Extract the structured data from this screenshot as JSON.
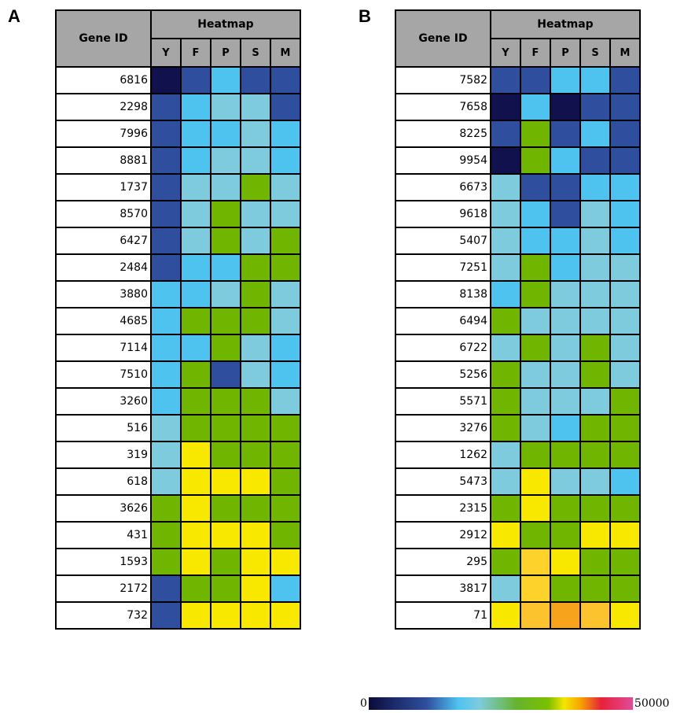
{
  "panels": [
    {
      "label": "A",
      "header": {
        "gene_id": "Gene ID",
        "heatmap": "Heatmap",
        "columns": [
          "Y",
          "F",
          "P",
          "S",
          "M"
        ]
      },
      "rows": [
        {
          "gene": "6816",
          "cells": [
            "#10114d",
            "#2f4f9e",
            "#4fc3f0",
            "#2f4f9e",
            "#2f4f9e"
          ]
        },
        {
          "gene": "2298",
          "cells": [
            "#2f4f9e",
            "#4fc3f0",
            "#7ecbdd",
            "#7ecbdd",
            "#2f4f9e"
          ]
        },
        {
          "gene": "7996",
          "cells": [
            "#2f4f9e",
            "#4fc3f0",
            "#4fc3f0",
            "#7ecbdd",
            "#4fc3f0"
          ]
        },
        {
          "gene": "8881",
          "cells": [
            "#2f4f9e",
            "#4fc3f0",
            "#7ecbdd",
            "#7ecbdd",
            "#4fc3f0"
          ]
        },
        {
          "gene": "1737",
          "cells": [
            "#2f4f9e",
            "#7ecbdd",
            "#7ecbdd",
            "#70b500",
            "#7ecbdd"
          ]
        },
        {
          "gene": "8570",
          "cells": [
            "#2f4f9e",
            "#7ecbdd",
            "#70b500",
            "#7ecbdd",
            "#7ecbdd"
          ]
        },
        {
          "gene": "6427",
          "cells": [
            "#2f4f9e",
            "#7ecbdd",
            "#70b500",
            "#7ecbdd",
            "#70b500"
          ]
        },
        {
          "gene": "2484",
          "cells": [
            "#2f4f9e",
            "#4fc3f0",
            "#4fc3f0",
            "#70b500",
            "#70b500"
          ]
        },
        {
          "gene": "3880",
          "cells": [
            "#4fc3f0",
            "#4fc3f0",
            "#7ecbdd",
            "#70b500",
            "#7ecbdd"
          ]
        },
        {
          "gene": "4685",
          "cells": [
            "#4fc3f0",
            "#70b500",
            "#70b500",
            "#70b500",
            "#7ecbdd"
          ]
        },
        {
          "gene": "7114",
          "cells": [
            "#4fc3f0",
            "#4fc3f0",
            "#70b500",
            "#7ecbdd",
            "#4fc3f0"
          ]
        },
        {
          "gene": "7510",
          "cells": [
            "#4fc3f0",
            "#70b500",
            "#2f4f9e",
            "#7ecbdd",
            "#4fc3f0"
          ]
        },
        {
          "gene": "3260",
          "cells": [
            "#4fc3f0",
            "#70b500",
            "#70b500",
            "#70b500",
            "#7ecbdd"
          ]
        },
        {
          "gene": "516",
          "cells": [
            "#7ecbdd",
            "#70b500",
            "#70b500",
            "#70b500",
            "#70b500"
          ]
        },
        {
          "gene": "319",
          "cells": [
            "#7ecbdd",
            "#f8e800",
            "#70b500",
            "#70b500",
            "#70b500"
          ]
        },
        {
          "gene": "618",
          "cells": [
            "#7ecbdd",
            "#f8e800",
            "#f8e800",
            "#f8e800",
            "#70b500"
          ]
        },
        {
          "gene": "3626",
          "cells": [
            "#70b500",
            "#f8e800",
            "#70b500",
            "#70b500",
            "#70b500"
          ]
        },
        {
          "gene": "431",
          "cells": [
            "#70b500",
            "#f8e800",
            "#f8e800",
            "#f8e800",
            "#70b500"
          ]
        },
        {
          "gene": "1593",
          "cells": [
            "#70b500",
            "#f8e800",
            "#70b500",
            "#f8e800",
            "#f8e800"
          ]
        },
        {
          "gene": "2172",
          "cells": [
            "#2f4f9e",
            "#70b500",
            "#70b500",
            "#f8e800",
            "#4fc3f0"
          ]
        },
        {
          "gene": "732",
          "cells": [
            "#2f4f9e",
            "#f8e800",
            "#f8e800",
            "#f8e800",
            "#f8e800"
          ]
        }
      ]
    },
    {
      "label": "B",
      "header": {
        "gene_id": "Gene ID",
        "heatmap": "Heatmap",
        "columns": [
          "Y",
          "F",
          "P",
          "S",
          "M"
        ]
      },
      "rows": [
        {
          "gene": "7582",
          "cells": [
            "#2f4f9e",
            "#2f4f9e",
            "#4fc3f0",
            "#4fc3f0",
            "#2f4f9e"
          ]
        },
        {
          "gene": "7658",
          "cells": [
            "#10114d",
            "#4fc3f0",
            "#10114d",
            "#2f4f9e",
            "#2f4f9e"
          ]
        },
        {
          "gene": "8225",
          "cells": [
            "#2f4f9e",
            "#70b500",
            "#2f4f9e",
            "#4fc3f0",
            "#2f4f9e"
          ]
        },
        {
          "gene": "9954",
          "cells": [
            "#10114d",
            "#70b500",
            "#4fc3f0",
            "#2f4f9e",
            "#2f4f9e"
          ]
        },
        {
          "gene": "6673",
          "cells": [
            "#7ecbdd",
            "#2f4f9e",
            "#2f4f9e",
            "#4fc3f0",
            "#4fc3f0"
          ]
        },
        {
          "gene": "9618",
          "cells": [
            "#7ecbdd",
            "#4fc3f0",
            "#2f4f9e",
            "#7ecbdd",
            "#4fc3f0"
          ]
        },
        {
          "gene": "5407",
          "cells": [
            "#7ecbdd",
            "#4fc3f0",
            "#4fc3f0",
            "#7ecbdd",
            "#4fc3f0"
          ]
        },
        {
          "gene": "7251",
          "cells": [
            "#7ecbdd",
            "#70b500",
            "#4fc3f0",
            "#7ecbdd",
            "#7ecbdd"
          ]
        },
        {
          "gene": "8138",
          "cells": [
            "#4fc3f0",
            "#70b500",
            "#7ecbdd",
            "#7ecbdd",
            "#7ecbdd"
          ]
        },
        {
          "gene": "6494",
          "cells": [
            "#70b500",
            "#7ecbdd",
            "#7ecbdd",
            "#7ecbdd",
            "#7ecbdd"
          ]
        },
        {
          "gene": "6722",
          "cells": [
            "#7ecbdd",
            "#70b500",
            "#7ecbdd",
            "#70b500",
            "#7ecbdd"
          ]
        },
        {
          "gene": "5256",
          "cells": [
            "#70b500",
            "#7ecbdd",
            "#7ecbdd",
            "#70b500",
            "#7ecbdd"
          ]
        },
        {
          "gene": "5571",
          "cells": [
            "#70b500",
            "#7ecbdd",
            "#7ecbdd",
            "#7ecbdd",
            "#70b500"
          ]
        },
        {
          "gene": "3276",
          "cells": [
            "#70b500",
            "#7ecbdd",
            "#4fc3f0",
            "#70b500",
            "#70b500"
          ]
        },
        {
          "gene": "1262",
          "cells": [
            "#7ecbdd",
            "#70b500",
            "#70b500",
            "#70b500",
            "#70b500"
          ]
        },
        {
          "gene": "5473",
          "cells": [
            "#7ecbdd",
            "#f8e800",
            "#7ecbdd",
            "#7ecbdd",
            "#4fc3f0"
          ]
        },
        {
          "gene": "2315",
          "cells": [
            "#70b500",
            "#f8e800",
            "#70b500",
            "#70b500",
            "#70b500"
          ]
        },
        {
          "gene": "2912",
          "cells": [
            "#f8e800",
            "#70b500",
            "#70b500",
            "#f8e800",
            "#f8e800"
          ]
        },
        {
          "gene": "295",
          "cells": [
            "#70b500",
            "#fdd22a",
            "#f8e800",
            "#70b500",
            "#70b500"
          ]
        },
        {
          "gene": "3817",
          "cells": [
            "#7ecbdd",
            "#fdd22a",
            "#70b500",
            "#70b500",
            "#70b500"
          ]
        },
        {
          "gene": "71",
          "cells": [
            "#f8e800",
            "#fdc32f",
            "#f7a41c",
            "#fdc32f",
            "#f8e800"
          ]
        }
      ]
    }
  ],
  "scale": {
    "min_label": "0",
    "max_label": "50000"
  },
  "chart_data": {
    "type": "heatmap",
    "columns": [
      "Y",
      "F",
      "P",
      "S",
      "M"
    ],
    "color_scale": {
      "min": 0,
      "max": 50000
    },
    "panels": [
      "A",
      "B"
    ]
  }
}
